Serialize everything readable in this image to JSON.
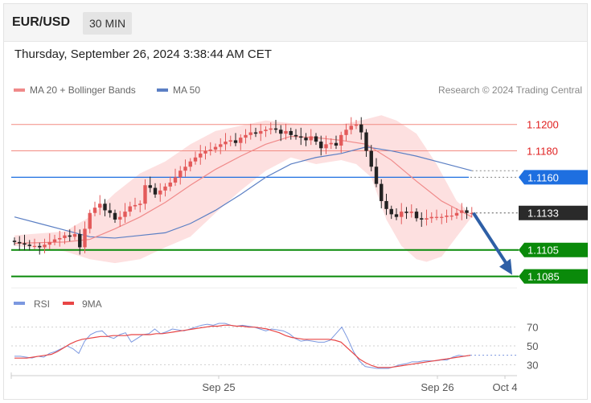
{
  "header": {
    "symbol": "EUR/USD",
    "timeframe": "30 MIN",
    "datetime": "Thursday, September 26, 2024 3:38:44 AM CET"
  },
  "legend": {
    "ma20": "MA 20 + Bollinger Bands",
    "ma50": "MA 50",
    "copyright": "Research © 2024 Trading Central",
    "rsi": "RSI",
    "rsi_ma": "9MA"
  },
  "colors": {
    "candle_up": "#e35a5a",
    "candle_down": "#222222",
    "bollinger": "#fde0e0",
    "ma20": "#f08a8a",
    "ma50": "#5b7fc4",
    "resistance": "#f28b82",
    "pivot": "#1e6fe0",
    "support": "#0a8a0a",
    "current": "#2a2a2a",
    "arrow": "#2e5fa6",
    "rsi": "#7b98e0",
    "rsi_ma": "#e84545"
  },
  "chart_data": {
    "type": "candlestick",
    "y_range": [
      1.1075,
      1.1212
    ],
    "x_labels": [
      "Sep 25",
      "Sep 26",
      "Oct 4"
    ],
    "levels": [
      {
        "name": "resistance-2",
        "value": 1.12,
        "label": "1.1200",
        "kind": "resistance"
      },
      {
        "name": "resistance-1",
        "value": 1.118,
        "label": "1.1180",
        "kind": "resistance"
      },
      {
        "name": "pivot",
        "value": 1.116,
        "label": "1.1160",
        "kind": "pivot"
      },
      {
        "name": "current",
        "value": 1.1133,
        "label": "1.1133",
        "kind": "current"
      },
      {
        "name": "support-1",
        "value": 1.1105,
        "label": "1.1105",
        "kind": "support"
      },
      {
        "name": "support-2",
        "value": 1.1085,
        "label": "1.1085",
        "kind": "support"
      }
    ],
    "close": [
      1.1111,
      1.111,
      1.1109,
      1.1108,
      1.1108,
      1.1107,
      1.1109,
      1.1111,
      1.1113,
      1.1114,
      1.1116,
      1.1115,
      1.1117,
      1.1107,
      1.1121,
      1.1133,
      1.1137,
      1.114,
      1.1135,
      1.1133,
      1.1128,
      1.113,
      1.1134,
      1.1138,
      1.1139,
      1.114,
      1.1154,
      1.1152,
      1.1147,
      1.115,
      1.1153,
      1.1156,
      1.116,
      1.1165,
      1.1168,
      1.1172,
      1.1175,
      1.1178,
      1.118,
      1.1181,
      1.1183,
      1.1185,
      1.1187,
      1.1188,
      1.1186,
      1.119,
      1.1192,
      1.1194,
      1.1193,
      1.1195,
      1.1196,
      1.1197,
      1.1196,
      1.1193,
      1.1195,
      1.1192,
      1.1191,
      1.119,
      1.1188,
      1.1191,
      1.1187,
      1.1182,
      1.1185,
      1.1186,
      1.1184,
      1.1192,
      1.1196,
      1.1199,
      1.12,
      1.1194,
      1.118,
      1.1168,
      1.1155,
      1.1142,
      1.1136,
      1.1132,
      1.113,
      1.1134,
      1.1133,
      1.1134,
      1.1129,
      1.1128,
      1.1129,
      1.113,
      1.113,
      1.113,
      1.1131,
      1.1131,
      1.1133,
      1.1135,
      1.1133,
      1.1133
    ],
    "open_first": 1.1112,
    "ma20": [
      [
        0,
        1.111
      ],
      [
        10,
        1.1111
      ],
      [
        15,
        1.1113
      ],
      [
        20,
        1.1121
      ],
      [
        25,
        1.113
      ],
      [
        30,
        1.1141
      ],
      [
        35,
        1.1154
      ],
      [
        40,
        1.1166
      ],
      [
        45,
        1.1176
      ],
      [
        50,
        1.1185
      ],
      [
        55,
        1.1191
      ],
      [
        60,
        1.119
      ],
      [
        65,
        1.1188
      ],
      [
        70,
        1.1185
      ],
      [
        75,
        1.1173
      ],
      [
        80,
        1.1157
      ],
      [
        85,
        1.1142
      ],
      [
        91,
        1.113
      ]
    ],
    "ma50": [
      [
        0,
        1.113
      ],
      [
        5,
        1.1125
      ],
      [
        10,
        1.112
      ],
      [
        15,
        1.1115
      ],
      [
        20,
        1.1114
      ],
      [
        25,
        1.1116
      ],
      [
        30,
        1.1118
      ],
      [
        35,
        1.1125
      ],
      [
        40,
        1.1135
      ],
      [
        45,
        1.1147
      ],
      [
        50,
        1.116
      ],
      [
        55,
        1.117
      ],
      [
        60,
        1.1175
      ],
      [
        65,
        1.1178
      ],
      [
        70,
        1.1183
      ],
      [
        75,
        1.118
      ],
      [
        80,
        1.1176
      ],
      [
        85,
        1.1171
      ],
      [
        91,
        1.1165
      ]
    ],
    "bb_upper": [
      [
        0,
        1.1116
      ],
      [
        10,
        1.1119
      ],
      [
        15,
        1.113
      ],
      [
        20,
        1.1148
      ],
      [
        25,
        1.1163
      ],
      [
        30,
        1.1172
      ],
      [
        35,
        1.1185
      ],
      [
        40,
        1.1195
      ],
      [
        45,
        1.1199
      ],
      [
        50,
        1.1203
      ],
      [
        55,
        1.1201
      ],
      [
        60,
        1.12
      ],
      [
        65,
        1.12
      ],
      [
        70,
        1.1204
      ],
      [
        73,
        1.1207
      ],
      [
        76,
        1.1203
      ],
      [
        80,
        1.1193
      ],
      [
        84,
        1.117
      ],
      [
        88,
        1.1142
      ],
      [
        91,
        1.1132
      ]
    ],
    "bb_lower": [
      [
        91,
        1.113
      ],
      [
        88,
        1.1115
      ],
      [
        85,
        1.11
      ],
      [
        82,
        1.1096
      ],
      [
        80,
        1.1098
      ],
      [
        77,
        1.1108
      ],
      [
        74,
        1.1128
      ],
      [
        71,
        1.116
      ],
      [
        68,
        1.117
      ],
      [
        65,
        1.1173
      ],
      [
        60,
        1.117
      ],
      [
        55,
        1.1175
      ],
      [
        50,
        1.1165
      ],
      [
        45,
        1.115
      ],
      [
        40,
        1.1133
      ],
      [
        35,
        1.1115
      ],
      [
        30,
        1.1107
      ],
      [
        25,
        1.1098
      ],
      [
        20,
        1.1095
      ],
      [
        15,
        1.1098
      ],
      [
        10,
        1.1104
      ],
      [
        5,
        1.1106
      ],
      [
        0,
        1.1108
      ]
    ],
    "arrow_target": 1.1085,
    "rsi": {
      "y_range": [
        20,
        80
      ],
      "ticks": [
        70,
        50,
        30
      ],
      "rsi_values": [
        39,
        39,
        38,
        37,
        39,
        38,
        42,
        44,
        47,
        50,
        47,
        42,
        55,
        62,
        65,
        66,
        60,
        58,
        62,
        64,
        54,
        58,
        62,
        63,
        68,
        63,
        65,
        68,
        67,
        66,
        68,
        70,
        72,
        73,
        72,
        74,
        74,
        72,
        71,
        72,
        71,
        70,
        68,
        66,
        68,
        67,
        66,
        63,
        58,
        55,
        56,
        55,
        54,
        54,
        56,
        63,
        70,
        58,
        44,
        34,
        28,
        27,
        26,
        26,
        26,
        28,
        30,
        31,
        33,
        33,
        34,
        34,
        34,
        35,
        35,
        38,
        40,
        39,
        40
      ],
      "ma_values": [
        37,
        37,
        37,
        38,
        39,
        40,
        41,
        44,
        48,
        52,
        55,
        57,
        58,
        59,
        60,
        60,
        61,
        61,
        61,
        62,
        62,
        62,
        62,
        63,
        63,
        64,
        65,
        66,
        67,
        68,
        69,
        70,
        71,
        71,
        72,
        72,
        71,
        71,
        70,
        70,
        69,
        68,
        66,
        64,
        61,
        59,
        58,
        57,
        57,
        57,
        57,
        57,
        56,
        54,
        48,
        42,
        36,
        32,
        29,
        27,
        27,
        27,
        28,
        29,
        30,
        31,
        32,
        33,
        34,
        35,
        36,
        37,
        38,
        39,
        40
      ]
    }
  }
}
